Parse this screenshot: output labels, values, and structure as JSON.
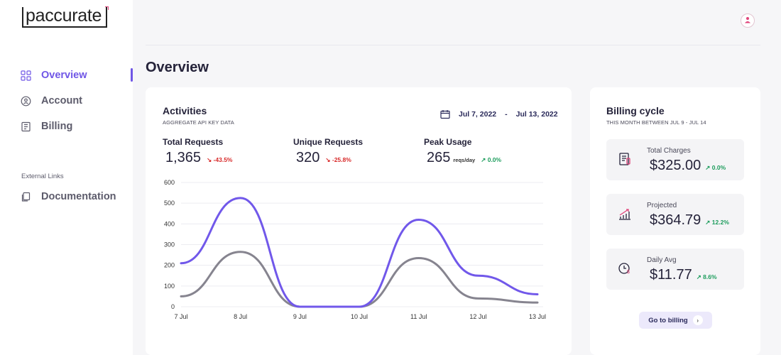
{
  "brand": {
    "logo_text": "paccurate"
  },
  "sidebar": {
    "items": [
      {
        "label": "Overview",
        "icon": "grid-icon"
      },
      {
        "label": "Account",
        "icon": "user-circle-icon"
      },
      {
        "label": "Billing",
        "icon": "receipt-icon"
      }
    ],
    "external_heading": "External Links",
    "external_items": [
      {
        "label": "Documentation",
        "icon": "documents-icon"
      }
    ]
  },
  "header": {
    "title": "Overview",
    "avatar_icon": "user-avatar-icon"
  },
  "activities": {
    "title": "Activities",
    "subtitle": "AGGREGATE API KEY DATA",
    "date_from": "Jul 7, 2022",
    "date_sep": "-",
    "date_to": "Jul 13, 2022",
    "metrics": [
      {
        "label": "Total Requests",
        "value": "1,365",
        "unit": "",
        "change": "-43.5%",
        "trend": "down"
      },
      {
        "label": "Unique Requests",
        "value": "320",
        "unit": "",
        "change": "-25.8%",
        "trend": "down"
      },
      {
        "label": "Peak Usage",
        "value": "265",
        "unit": "reqs/day",
        "change": "0.0%",
        "trend": "up"
      }
    ]
  },
  "chart_data": {
    "type": "line",
    "x": [
      "7 Jul",
      "8 Jul",
      "9 Jul",
      "10 Jul",
      "11 Jul",
      "12 Jul",
      "13 Jul"
    ],
    "ylim": [
      0,
      600
    ],
    "yticks": [
      0,
      100,
      200,
      300,
      400,
      500,
      600
    ],
    "grid": true,
    "series": [
      {
        "color": "#7158ea",
        "values": [
          210,
          525,
          0,
          0,
          420,
          150,
          60
        ]
      },
      {
        "color": "#86848f",
        "values": [
          50,
          265,
          0,
          0,
          235,
          40,
          20
        ]
      }
    ]
  },
  "billing": {
    "title": "Billing cycle",
    "subtitle": "THIS MONTH BETWEEN JUL 9 - JUL 14",
    "items": [
      {
        "label": "Total Charges",
        "value": "$325.00",
        "change": "0.0%",
        "trend": "up",
        "icon": "invoice-icon"
      },
      {
        "label": "Projected",
        "value": "$364.79",
        "change": "12.2%",
        "trend": "up",
        "icon": "growth-chart-icon"
      },
      {
        "label": "Daily Avg",
        "value": "$11.77",
        "change": "8.6%",
        "trend": "up",
        "icon": "clock-dollar-icon"
      }
    ],
    "button_label": "Go to billing"
  },
  "colors": {
    "accent": "#6f56e6",
    "up": "#1c9c5c",
    "down": "#d82a2a"
  }
}
